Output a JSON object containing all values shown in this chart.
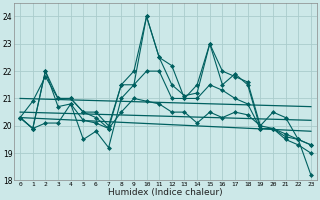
{
  "title": "",
  "xlabel": "Humidex (Indice chaleur)",
  "bg_color": "#cce8e8",
  "grid_color": "#aacccc",
  "line_color": "#006060",
  "ylim": [
    18,
    24.5
  ],
  "xlim": [
    -0.5,
    23.5
  ],
  "yticks": [
    18,
    19,
    20,
    21,
    22,
    23,
    24
  ],
  "xticks": [
    0,
    1,
    2,
    3,
    4,
    5,
    6,
    7,
    8,
    9,
    10,
    11,
    12,
    13,
    14,
    15,
    16,
    17,
    18,
    19,
    20,
    21,
    22,
    23
  ],
  "series1": [
    20.3,
    20.9,
    21.8,
    21.0,
    21.0,
    20.5,
    20.3,
    19.9,
    21.5,
    22.0,
    24.0,
    22.5,
    22.2,
    21.0,
    21.5,
    23.0,
    21.5,
    21.9,
    21.5,
    19.9,
    19.9,
    19.6,
    19.5,
    19.3
  ],
  "series2": [
    20.3,
    19.9,
    20.1,
    20.1,
    20.8,
    20.2,
    20.1,
    19.9,
    20.5,
    21.0,
    20.9,
    20.8,
    20.5,
    20.5,
    20.1,
    20.5,
    20.3,
    20.5,
    20.4,
    20.0,
    19.9,
    19.7,
    19.5,
    19.3
  ],
  "series3": [
    20.3,
    19.9,
    22.0,
    20.7,
    20.8,
    19.5,
    19.8,
    19.2,
    21.0,
    21.5,
    24.0,
    22.5,
    21.5,
    21.1,
    21.2,
    23.0,
    22.0,
    21.8,
    21.6,
    20.0,
    20.5,
    20.3,
    19.5,
    18.2
  ],
  "series4": [
    20.3,
    19.9,
    22.0,
    21.0,
    21.0,
    20.5,
    20.5,
    20.0,
    21.5,
    21.5,
    22.0,
    22.0,
    21.0,
    21.0,
    21.0,
    21.5,
    21.3,
    21.0,
    20.8,
    19.9,
    19.9,
    19.5,
    19.3,
    19.0
  ],
  "trend1_start": 21.0,
  "trend1_end": 20.7,
  "trend2_start": 20.5,
  "trend2_end": 20.2,
  "trend3_start": 20.3,
  "trend3_end": 19.8
}
